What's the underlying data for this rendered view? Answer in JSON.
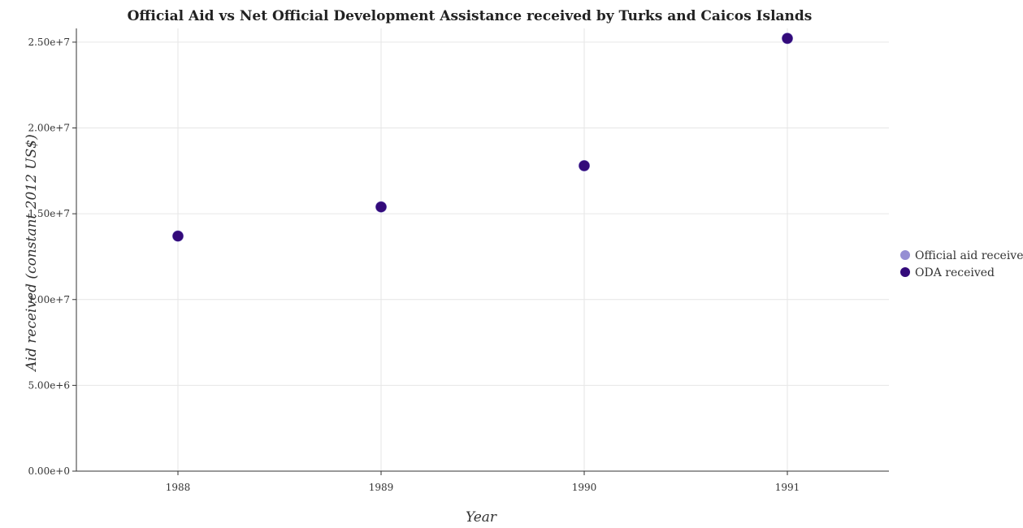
{
  "chart_data": {
    "type": "scatter",
    "title": "Official Aid vs Net Official Development Assistance received by Turks and Caicos Islands",
    "xlabel": "Year",
    "ylabel": "Aid received (constant 2012 US$)",
    "categories": [
      "1988",
      "1989",
      "1990",
      "1991"
    ],
    "ylim": [
      0,
      25800000
    ],
    "yticks": [
      0,
      5000000,
      10000000,
      15000000,
      20000000,
      25000000
    ],
    "ytick_labels": [
      "0.00e+0",
      "5.00e+6",
      "1.00e+7",
      "1.50e+7",
      "2.00e+7",
      "2.50e+7"
    ],
    "grid": true,
    "legend_position": "right",
    "series": [
      {
        "name": "Official aid received",
        "color": "#7b72c8",
        "values": [
          13700000,
          15400000,
          17800000,
          25220000
        ]
      },
      {
        "name": "ODA received",
        "color": "#330a7a",
        "values": [
          13700000,
          15400000,
          17800000,
          25220000
        ]
      }
    ]
  }
}
